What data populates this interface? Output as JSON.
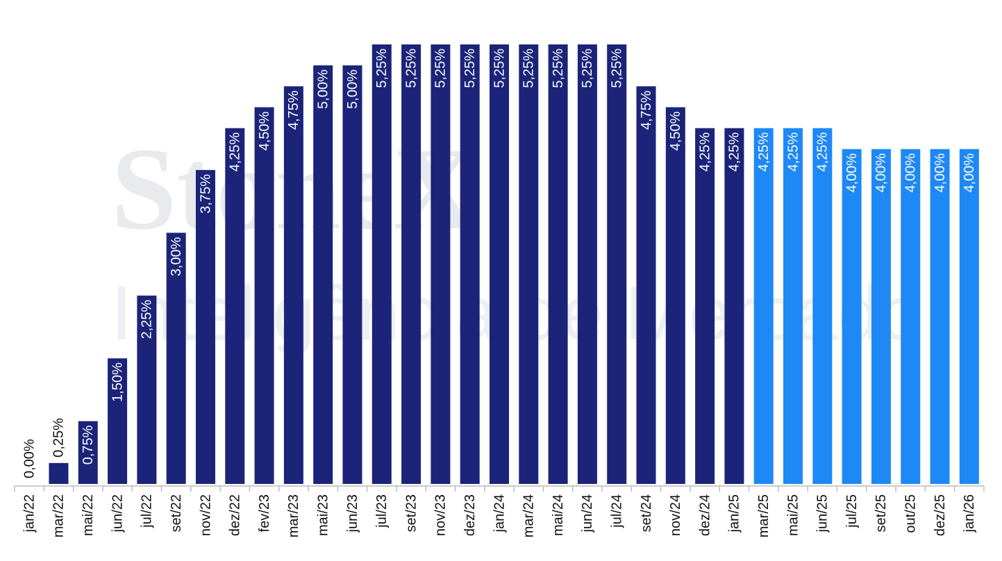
{
  "chart_data": {
    "type": "bar",
    "watermark": [
      "StoneX",
      "Inteligência de Mercado"
    ],
    "categories": [
      "jan/22",
      "mar/22",
      "mai/22",
      "jun/22",
      "jul/22",
      "set/22",
      "nov/22",
      "dez/22",
      "fev/23",
      "mar/23",
      "mai/23",
      "jun/23",
      "jul/23",
      "set/23",
      "nov/23",
      "dez/23",
      "jan/24",
      "mar/24",
      "mai/24",
      "jun/24",
      "jul/24",
      "set/24",
      "nov/24",
      "dez/24",
      "jan/25",
      "mar/25",
      "mai/25",
      "jun/25",
      "jul/25",
      "set/25",
      "out/25",
      "dez/25",
      "jan/26"
    ],
    "values": [
      0,
      0.25,
      0.75,
      1.5,
      2.25,
      3.0,
      3.75,
      4.25,
      4.5,
      4.75,
      5.0,
      5.0,
      5.25,
      5.25,
      5.25,
      5.25,
      5.25,
      5.25,
      5.25,
      5.25,
      5.25,
      4.75,
      4.5,
      4.25,
      4.25,
      4.25,
      4.25,
      4.25,
      4.0,
      4.0,
      4.0,
      4.0,
      4.0
    ],
    "value_labels": [
      "0,00%",
      "0,25%",
      "0,75%",
      "1,50%",
      "2,25%",
      "3,00%",
      "3,75%",
      "4,25%",
      "4,50%",
      "4,75%",
      "5,00%",
      "5,00%",
      "5,25%",
      "5,25%",
      "5,25%",
      "5,25%",
      "5,25%",
      "5,25%",
      "5,25%",
      "5,25%",
      "5,25%",
      "4,75%",
      "4,50%",
      "4,25%",
      "4,25%",
      "4,25%",
      "4,25%",
      "4,25%",
      "4,00%",
      "4,00%",
      "4,00%",
      "4,00%",
      "4,00%"
    ],
    "colors": [
      "#1b2479",
      "#1b2479",
      "#1b2479",
      "#1b2479",
      "#1b2479",
      "#1b2479",
      "#1b2479",
      "#1b2479",
      "#1b2479",
      "#1b2479",
      "#1b2479",
      "#1b2479",
      "#1b2479",
      "#1b2479",
      "#1b2479",
      "#1b2479",
      "#1b2479",
      "#1b2479",
      "#1b2479",
      "#1b2479",
      "#1b2479",
      "#1b2479",
      "#1b2479",
      "#1b2479",
      "#1b2479",
      "#1e88f5",
      "#1e88f5",
      "#1e88f5",
      "#1e88f5",
      "#1e88f5",
      "#1e88f5",
      "#1e88f5",
      "#1e88f5"
    ],
    "ylim": [
      0,
      5.25
    ]
  }
}
